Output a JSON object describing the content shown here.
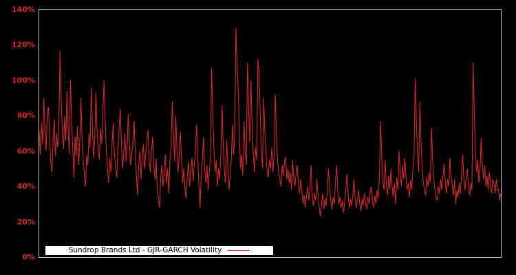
{
  "window": {
    "background_color": "#000000"
  },
  "chart": {
    "legend": {
      "label": "Sundrop Brands Ltd - GJR-GARCH Volatility",
      "background_color": "#ffffff",
      "text_color": "#000000"
    },
    "axes": {
      "tick_label_color": "#d62728",
      "border_color": "#c9c9c9"
    }
  },
  "chart_data": {
    "type": "line",
    "title": "",
    "xlabel": "",
    "ylabel": "",
    "grid": false,
    "legend_position": "bottom-left-inside",
    "ylim": [
      0,
      140
    ],
    "y_unit": "percent",
    "y_tick_labels": [
      "0%",
      "20%",
      "40%",
      "60%",
      "80%",
      "100%",
      "120%",
      "140%"
    ],
    "x_tick_labels": [],
    "series": [
      {
        "name": "Sundrop Brands Ltd - GJR-GARCH Volatility",
        "color": "#d62728",
        "unit": "percent",
        "values": [
          71,
          58,
          76,
          64,
          90,
          72,
          60,
          83,
          85,
          68,
          54,
          48,
          66,
          78,
          57,
          70,
          62,
          75,
          117,
          88,
          72,
          61,
          80,
          66,
          94,
          71,
          58,
          100,
          76,
          62,
          45,
          68,
          57,
          74,
          52,
          63,
          90,
          70,
          55,
          47,
          40,
          58,
          52,
          70,
          62,
          96,
          74,
          56,
          68,
          93,
          72,
          60,
          55,
          73,
          64,
          80,
          100,
          78,
          60,
          50,
          42,
          56,
          48,
          65,
          76,
          58,
          52,
          45,
          60,
          72,
          84,
          66,
          50,
          58,
          70,
          54,
          62,
          81,
          64,
          52,
          58,
          66,
          77,
          60,
          46,
          35,
          52,
          60,
          44,
          56,
          64,
          50,
          58,
          65,
          72,
          55,
          48,
          60,
          68,
          52,
          44,
          56,
          38,
          33,
          28,
          45,
          52,
          40,
          48,
          58,
          42,
          50,
          36,
          55,
          62,
          88,
          70,
          54,
          80,
          62,
          48,
          58,
          71,
          55,
          42,
          50,
          38,
          33,
          46,
          54,
          40,
          48,
          56,
          43,
          52,
          60,
          75,
          58,
          40,
          28,
          45,
          55,
          68,
          50,
          42,
          52,
          38,
          48,
          56,
          107,
          80,
          62,
          48,
          55,
          40,
          50,
          44,
          58,
          86,
          64,
          50,
          42,
          66,
          52,
          38,
          45,
          55,
          75,
          58,
          68,
          130,
          108,
          95,
          70,
          50,
          58,
          46,
          77,
          60,
          52,
          110,
          85,
          65,
          100,
          75,
          58,
          48,
          62,
          55,
          112,
          105,
          82,
          60,
          50,
          90,
          72,
          58,
          48,
          45,
          55,
          50,
          62,
          48,
          58,
          92,
          70,
          55,
          48,
          44,
          40,
          52,
          46,
          54,
          57,
          44,
          50,
          42,
          48,
          38,
          55,
          45,
          40,
          47,
          52,
          42,
          36,
          44,
          38,
          30,
          35,
          28,
          34,
          40,
          32,
          38,
          52,
          34,
          29,
          36,
          32,
          44,
          35,
          28,
          23,
          30,
          36,
          27,
          33,
          29,
          38,
          50,
          40,
          32,
          27,
          34,
          30,
          42,
          52,
          38,
          30,
          34,
          28,
          32,
          25,
          30,
          38,
          47,
          36,
          28,
          33,
          29,
          35,
          44,
          34,
          28,
          32,
          38,
          30,
          26,
          33,
          29,
          36,
          31,
          27,
          34,
          30,
          37,
          40,
          32,
          28,
          35,
          30,
          38,
          33,
          45,
          77,
          58,
          44,
          38,
          55,
          42,
          35,
          46,
          38,
          50,
          40,
          34,
          42,
          30,
          45,
          38,
          60,
          48,
          40,
          52,
          44,
          56,
          46,
          38,
          42,
          34,
          44,
          38,
          50,
          58,
          101,
          76,
          58,
          48,
          88,
          66,
          50,
          42,
          38,
          35,
          45,
          40,
          48,
          42,
          73,
          56,
          44,
          38,
          34,
          32,
          40,
          36,
          44,
          38,
          46,
          53,
          42,
          36,
          44,
          40,
          56,
          46,
          40,
          35,
          44,
          30,
          38,
          34,
          42,
          36,
          46,
          58,
          44,
          38,
          46,
          50,
          40,
          35,
          42,
          38,
          110,
          82,
          60,
          48,
          55,
          42,
          50,
          67,
          52,
          44,
          52,
          40,
          46,
          38,
          48,
          42,
          36,
          44,
          42,
          36,
          44,
          38,
          38,
          32,
          36
        ]
      }
    ]
  }
}
